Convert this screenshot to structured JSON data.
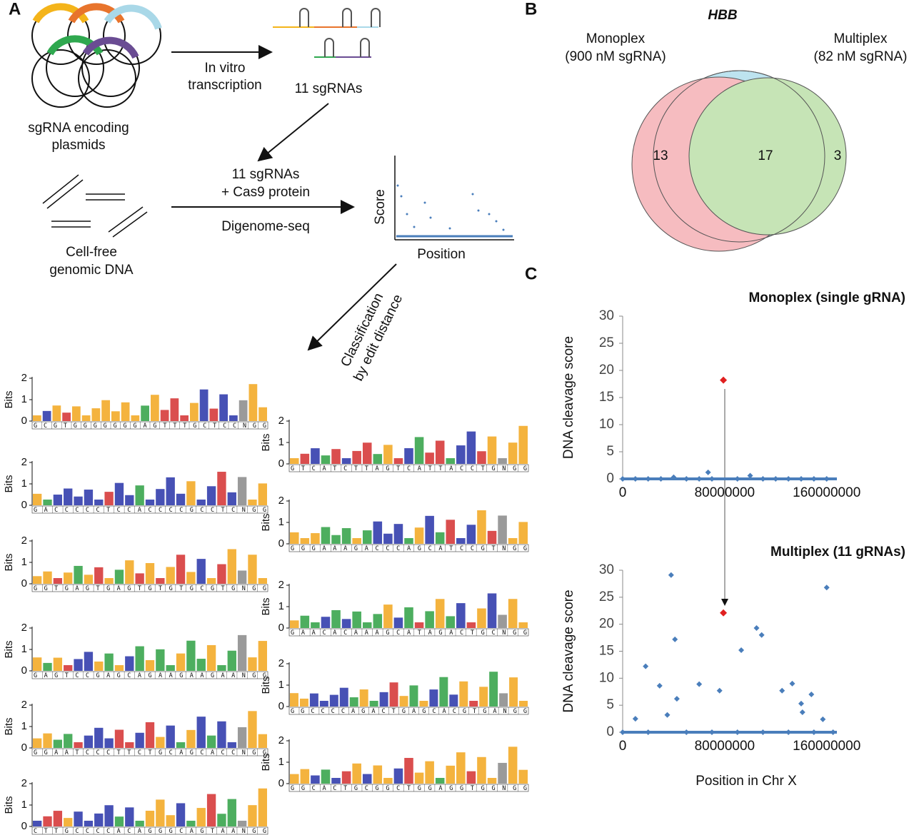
{
  "panel_a": {
    "label": "A",
    "plasmids": [
      "sgRNA encoding",
      "plasmids"
    ],
    "transcription": [
      "In vitro",
      "transcription"
    ],
    "sgrnas": "11 sgRNAs",
    "reaction": [
      "11 sgRNAs",
      "+ Cas9 protein"
    ],
    "method": "Digenome-seq",
    "dna": [
      "Cell-free",
      "genomic DNA"
    ],
    "score_label": "Score",
    "position_label": "Position",
    "classification": [
      "Classification",
      "by edit distance"
    ],
    "logo_axis": {
      "label": "Bits",
      "ticks": [
        0,
        1,
        2
      ]
    },
    "logos_left": [
      "GCGTGGGGGGGAGTTTGCTCCNGG",
      "GACCCCCTCCACCCCGCCTCNGG",
      "GGTGAGTGAGTGTGTGCGTGNGG",
      "GAGTCCGAGCAGAAGAAGAANGG",
      "GGAATCCCTTCTGCAGCACCNGG",
      "CTTGCCCCACAGGGCAGTAANGG"
    ],
    "logos_right": [
      "GTCATCTTAGTCATTACCTGNGG",
      "GGGAAAGACCCAGCATCCGTNGG",
      "GAACACAAAGCATAGACTGCNGG",
      "GGCCCCAGACTGAGCACGTGANGG",
      "GGCACTGCGGCTGGAGGTGGNGG"
    ]
  },
  "panel_b": {
    "label": "B",
    "title": "HBB",
    "left": [
      "Monoplex",
      "(900 nM sgRNA)"
    ],
    "right": [
      "Multiplex",
      "(82 nM sgRNA)"
    ],
    "only_left": "13",
    "both": "17",
    "only_right": "3"
  },
  "panel_c": {
    "label": "C",
    "xlabel": "Position in Chr X"
  },
  "chart_data": [
    {
      "type": "scatter",
      "title": "Monoplex (single gRNA)",
      "ylabel": "DNA cleavage score",
      "xlim": [
        0,
        168000000
      ],
      "ylim": [
        0,
        30
      ],
      "xticks": [
        0,
        80000000,
        160000000
      ],
      "yticks": [
        0,
        5,
        10,
        15,
        20,
        25,
        30
      ],
      "series": [
        {
          "color": "#4a7ebb",
          "x": [
            0,
            10000000,
            20000000,
            30000000,
            40000000,
            50000000,
            60000000,
            67000000,
            70000000,
            90000000,
            100000000,
            110000000,
            120000000,
            130000000,
            140000000,
            150000000,
            160000000
          ],
          "values": [
            0,
            0,
            0,
            0,
            0.3,
            0,
            0,
            1.2,
            0,
            0,
            0.6,
            0,
            0,
            0,
            0,
            0,
            0
          ]
        },
        {
          "color": "#e02020",
          "x": [
            79000000
          ],
          "values": [
            18.2
          ]
        }
      ]
    },
    {
      "type": "scatter",
      "title": "Multiplex (11 gRNAs)",
      "ylabel": "DNA cleavage score",
      "xlim": [
        0,
        168000000
      ],
      "ylim": [
        0,
        30
      ],
      "xticks": [
        0,
        80000000,
        160000000
      ],
      "yticks": [
        0,
        5,
        10,
        15,
        20,
        25,
        30
      ],
      "series": [
        {
          "color": "#4a7ebb",
          "x": [
            38000000,
            41000000,
            18000000,
            29000000,
            42500000,
            35000000,
            10000000,
            60000000,
            76000000,
            93000000,
            105000000,
            109000000,
            133000000,
            125000000,
            140000000,
            160000000,
            148000000,
            141000000,
            157000000,
            0,
            20000000,
            50000000,
            70000000,
            90000000,
            110000000,
            130000000,
            150000000,
            165000000
          ],
          "values": [
            29.1,
            17.2,
            12.2,
            8.6,
            6.2,
            3.2,
            2.5,
            8.9,
            7.7,
            15.2,
            19.3,
            18,
            9,
            7.7,
            5.3,
            26.8,
            7,
            3.7,
            2.4,
            0,
            0,
            0,
            0,
            0,
            0,
            0,
            0,
            0
          ]
        },
        {
          "color": "#e02020",
          "x": [
            79000000
          ],
          "values": [
            22.1
          ]
        }
      ]
    }
  ]
}
